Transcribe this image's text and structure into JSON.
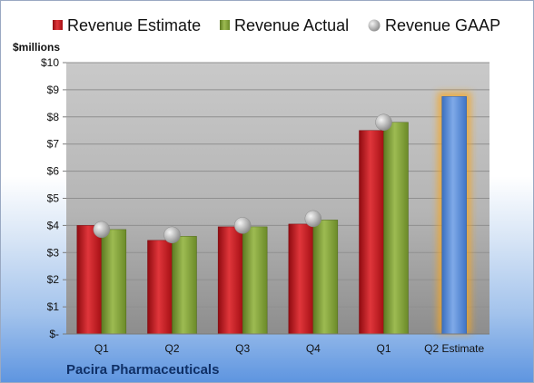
{
  "company": "Pacira Pharmaceuticals",
  "colors": {
    "estimate": "#c0141a",
    "actual": "#7f9e32",
    "gaap": "#a9a9a9",
    "projected": "#4f86d6",
    "projected_glow": "#f5a623"
  },
  "chart_data": {
    "type": "bar",
    "ylabel": "$millions",
    "ylim": [
      0,
      10
    ],
    "yticks": [
      "$-",
      "$1",
      "$2",
      "$3",
      "$4",
      "$5",
      "$6",
      "$7",
      "$8",
      "$9",
      "$10"
    ],
    "categories": [
      "Q1",
      "Q2",
      "Q3",
      "Q4",
      "Q1",
      "Q2 Estimate"
    ],
    "series": [
      {
        "name": "Revenue Estimate",
        "values": [
          4.0,
          3.45,
          3.95,
          4.05,
          7.5,
          8.75
        ]
      },
      {
        "name": "Revenue Actual",
        "values": [
          3.85,
          3.6,
          3.95,
          4.2,
          7.8,
          null
        ]
      },
      {
        "name": "Revenue GAAP",
        "values": [
          3.85,
          3.65,
          4.0,
          4.25,
          7.8,
          null
        ]
      }
    ],
    "grid": true,
    "legend": "top"
  }
}
